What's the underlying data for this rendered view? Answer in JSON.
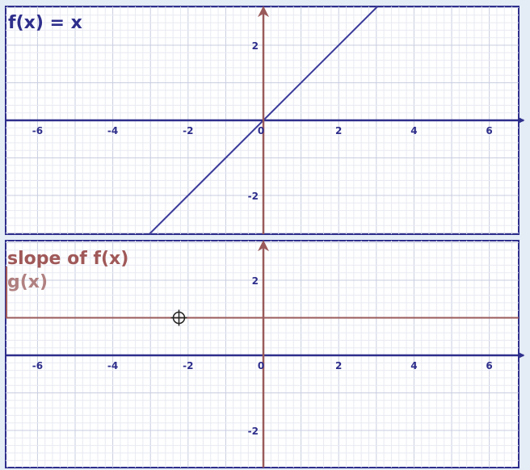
{
  "chart_data": [
    {
      "type": "line",
      "title": "f(x) = x",
      "xlim": [
        -7,
        7
      ],
      "ylim": [
        -3,
        3
      ],
      "xticks": [
        -6,
        -4,
        -2,
        0,
        2,
        4,
        6
      ],
      "xtick_labels": [
        "-6",
        "-4",
        "-2",
        "0",
        "2",
        "4",
        "6"
      ],
      "yticks": [
        2,
        -2
      ],
      "ytick_labels": [
        "2",
        "-2"
      ],
      "grid": true,
      "series": [
        {
          "x": [
            -7,
            7
          ],
          "y": [
            -7,
            7
          ]
        }
      ],
      "colors": {
        "curve": "#3a3a9a",
        "x_axis": "#2e2e8c",
        "y_axis": "#9a5a5a",
        "title": "#2e2e8c"
      }
    },
    {
      "type": "line",
      "title": "slope of f(x)",
      "subtitle": "g(x)",
      "xlim": [
        -7,
        7
      ],
      "ylim": [
        -3,
        3
      ],
      "xticks": [
        -6,
        -4,
        -2,
        0,
        2,
        4,
        6
      ],
      "xtick_labels": [
        "-6",
        "-4",
        "-2",
        "0",
        "2",
        "4",
        "6"
      ],
      "yticks": [
        2,
        -2
      ],
      "ytick_labels": [
        "2",
        "-2"
      ],
      "grid": true,
      "series": [
        {
          "x": [
            -7,
            7
          ],
          "y": [
            1,
            1
          ]
        }
      ],
      "cursor": {
        "x": -2.2,
        "y": 1
      },
      "colors": {
        "curve": "#9a5a5a",
        "x_axis": "#2e2e8c",
        "y_axis": "#9a5a5a",
        "title": "#a05858",
        "subtitle": "#b08080"
      }
    }
  ]
}
